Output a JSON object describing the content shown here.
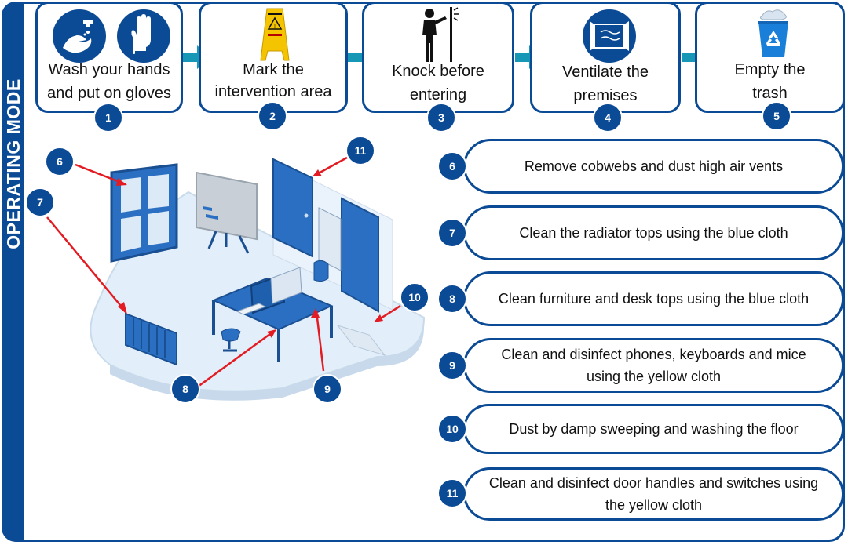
{
  "sidebar_title": "OPERATING MODE",
  "colors": {
    "brand": "#0b4a94",
    "arrow": "#1597b5",
    "callout_line": "#e31b23"
  },
  "steps": [
    {
      "label_line1": "Wash your hands",
      "label_line2": "and put on gloves",
      "number": "1",
      "icons": [
        "hand-wash-icon",
        "gloves-icon"
      ]
    },
    {
      "label_line1": "Mark the",
      "label_line2": "intervention area",
      "number": "2",
      "icons": [
        "wet-floor-sign-icon"
      ]
    },
    {
      "label_line1": "Knock before",
      "label_line2": "entering",
      "number": "3",
      "icons": [
        "knock-door-icon"
      ]
    },
    {
      "label_line1": "Ventilate the",
      "label_line2": "premises",
      "number": "4",
      "icons": [
        "window-ventilate-icon"
      ]
    },
    {
      "label_line1": "Empty the",
      "label_line2": "trash",
      "number": "5",
      "icons": [
        "recycle-bin-icon"
      ]
    }
  ],
  "rules": [
    {
      "number": "6",
      "text": "Remove cobwebs and dust high air vents"
    },
    {
      "number": "7",
      "text": "Clean the radiator tops using the blue cloth"
    },
    {
      "number": "8",
      "text": "Clean furniture and desk tops using the blue cloth"
    },
    {
      "number": "9",
      "text_line1": "Clean and disinfect phones, keyboards and mice",
      "text_line2": "using the yellow cloth"
    },
    {
      "number": "10",
      "text": "Dust by damp sweeping and washing the floor"
    },
    {
      "number": "11",
      "text_line1": "Clean and disinfect door handles and switches using",
      "text_line2": "the yellow cloth"
    }
  ],
  "scene_callouts": [
    "6",
    "7",
    "8",
    "9",
    "10",
    "11"
  ]
}
